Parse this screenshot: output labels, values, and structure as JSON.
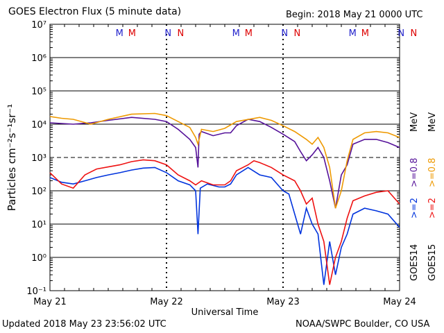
{
  "header": {
    "title": "GOES Electron Flux (5 minute data)",
    "begin": "Begin: 2018 May 21 0000 UTC"
  },
  "footer": {
    "updated": "Updated 2018 May 23 23:56:02 UTC",
    "credit": "NOAA/SWPC Boulder, CO USA"
  },
  "colors": {
    "goes14_2mev": "#0033dd",
    "goes15_2mev": "#ee1111",
    "goes14_08mev": "#551199",
    "goes15_08mev": "#ee9900",
    "marker_m": "#2222cc",
    "marker_n": "#2222cc",
    "marker_red": "#dd0000"
  },
  "chart_data": {
    "type": "line",
    "xlabel": "Universal Time",
    "ylabel": "Particles cm⁻²s⁻¹sr⁻¹",
    "x_ticks": [
      "May 21",
      "May 22",
      "May 23",
      "May 24"
    ],
    "y_scale": "log",
    "y_ticks": [
      "10⁻¹",
      "10⁰",
      "10¹",
      "10²",
      "10³",
      "10⁴",
      "10⁵",
      "10⁶",
      "10⁷"
    ],
    "xlim_days": [
      0,
      3
    ],
    "ylim": [
      0.1,
      10000000
    ],
    "threshold_line": 1000,
    "midnight_noon_markers": [
      {
        "day": 0,
        "labels": [
          "M",
          "M",
          "N",
          "N"
        ]
      },
      {
        "day": 1,
        "labels": [
          "M",
          "M",
          "N",
          "N"
        ]
      },
      {
        "day": 2,
        "labels": [
          "M",
          "M",
          "N",
          "N"
        ]
      }
    ],
    "legend": {
      "goes14_2": ">=2",
      "goes15_2": ">=2",
      "goes14_08": ">=0.8",
      "goes15_08": ">=0.8",
      "mev": "MeV",
      "goes14": "GOES14",
      "goes15": "GOES15"
    },
    "series": [
      {
        "name": "GOES14 >=0.8 MeV",
        "color": "#551199",
        "points": [
          [
            0.0,
            11000
          ],
          [
            0.1,
            10500
          ],
          [
            0.2,
            10000
          ],
          [
            0.35,
            11000
          ],
          [
            0.5,
            13000
          ],
          [
            0.7,
            16000
          ],
          [
            0.9,
            14000
          ],
          [
            1.0,
            12000
          ],
          [
            1.1,
            7000
          ],
          [
            1.2,
            3500
          ],
          [
            1.25,
            2000
          ],
          [
            1.27,
            500
          ],
          [
            1.28,
            5000
          ],
          [
            1.3,
            6000
          ],
          [
            1.4,
            4500
          ],
          [
            1.5,
            5500
          ],
          [
            1.55,
            5500
          ],
          [
            1.6,
            9000
          ],
          [
            1.7,
            14000
          ],
          [
            1.8,
            12000
          ],
          [
            1.9,
            8000
          ],
          [
            2.0,
            5000
          ],
          [
            2.1,
            3000
          ],
          [
            2.15,
            1500
          ],
          [
            2.2,
            800
          ],
          [
            2.25,
            1200
          ],
          [
            2.3,
            2000
          ],
          [
            2.35,
            1000
          ],
          [
            2.4,
            200
          ],
          [
            2.45,
            30
          ],
          [
            2.5,
            300
          ],
          [
            2.55,
            600
          ],
          [
            2.6,
            2500
          ],
          [
            2.7,
            3500
          ],
          [
            2.8,
            3500
          ],
          [
            2.9,
            2800
          ],
          [
            3.0,
            2000
          ]
        ]
      },
      {
        "name": "GOES15 >=0.8 MeV",
        "color": "#ee9900",
        "points": [
          [
            0.0,
            17000
          ],
          [
            0.1,
            15000
          ],
          [
            0.2,
            14000
          ],
          [
            0.35,
            10000
          ],
          [
            0.5,
            14000
          ],
          [
            0.7,
            20000
          ],
          [
            0.9,
            21000
          ],
          [
            1.0,
            18000
          ],
          [
            1.1,
            12000
          ],
          [
            1.2,
            8000
          ],
          [
            1.25,
            4000
          ],
          [
            1.27,
            2500
          ],
          [
            1.3,
            7000
          ],
          [
            1.4,
            6000
          ],
          [
            1.5,
            7500
          ],
          [
            1.6,
            12000
          ],
          [
            1.8,
            16000
          ],
          [
            1.9,
            13000
          ],
          [
            2.0,
            9000
          ],
          [
            2.1,
            6000
          ],
          [
            2.2,
            3500
          ],
          [
            2.25,
            2500
          ],
          [
            2.3,
            4000
          ],
          [
            2.35,
            2000
          ],
          [
            2.4,
            500
          ],
          [
            2.45,
            30
          ],
          [
            2.5,
            100
          ],
          [
            2.55,
            800
          ],
          [
            2.6,
            3500
          ],
          [
            2.7,
            5500
          ],
          [
            2.8,
            6000
          ],
          [
            2.9,
            5500
          ],
          [
            3.0,
            4000
          ]
        ]
      },
      {
        "name": "GOES14 >=2 MeV",
        "color": "#0033dd",
        "points": [
          [
            0.0,
            250
          ],
          [
            0.1,
            180
          ],
          [
            0.2,
            160
          ],
          [
            0.3,
            200
          ],
          [
            0.4,
            250
          ],
          [
            0.5,
            300
          ],
          [
            0.6,
            350
          ],
          [
            0.7,
            420
          ],
          [
            0.8,
            480
          ],
          [
            0.9,
            500
          ],
          [
            1.0,
            350
          ],
          [
            1.1,
            200
          ],
          [
            1.2,
            150
          ],
          [
            1.25,
            100
          ],
          [
            1.27,
            5
          ],
          [
            1.29,
            120
          ],
          [
            1.35,
            160
          ],
          [
            1.45,
            130
          ],
          [
            1.5,
            130
          ],
          [
            1.55,
            160
          ],
          [
            1.6,
            300
          ],
          [
            1.7,
            500
          ],
          [
            1.8,
            300
          ],
          [
            1.9,
            250
          ],
          [
            2.0,
            100
          ],
          [
            2.05,
            80
          ],
          [
            2.1,
            20
          ],
          [
            2.15,
            5
          ],
          [
            2.2,
            30
          ],
          [
            2.25,
            10
          ],
          [
            2.3,
            5
          ],
          [
            2.35,
            0.15
          ],
          [
            2.4,
            3
          ],
          [
            2.45,
            0.3
          ],
          [
            2.5,
            2
          ],
          [
            2.55,
            5
          ],
          [
            2.6,
            20
          ],
          [
            2.7,
            30
          ],
          [
            2.8,
            25
          ],
          [
            2.9,
            20
          ],
          [
            3.0,
            8
          ]
        ]
      },
      {
        "name": "GOES15 >=2 MeV",
        "color": "#ee1111",
        "points": [
          [
            0.0,
            350
          ],
          [
            0.1,
            160
          ],
          [
            0.2,
            120
          ],
          [
            0.3,
            300
          ],
          [
            0.4,
            450
          ],
          [
            0.5,
            520
          ],
          [
            0.6,
            600
          ],
          [
            0.7,
            750
          ],
          [
            0.8,
            850
          ],
          [
            0.9,
            800
          ],
          [
            1.0,
            600
          ],
          [
            1.1,
            300
          ],
          [
            1.2,
            200
          ],
          [
            1.25,
            150
          ],
          [
            1.3,
            200
          ],
          [
            1.4,
            150
          ],
          [
            1.5,
            150
          ],
          [
            1.55,
            200
          ],
          [
            1.6,
            400
          ],
          [
            1.7,
            600
          ],
          [
            1.75,
            800
          ],
          [
            1.8,
            700
          ],
          [
            1.9,
            500
          ],
          [
            2.0,
            300
          ],
          [
            2.1,
            200
          ],
          [
            2.15,
            100
          ],
          [
            2.2,
            40
          ],
          [
            2.25,
            60
          ],
          [
            2.3,
            10
          ],
          [
            2.35,
            3
          ],
          [
            2.4,
            0.15
          ],
          [
            2.45,
            1
          ],
          [
            2.5,
            3
          ],
          [
            2.55,
            15
          ],
          [
            2.6,
            50
          ],
          [
            2.7,
            70
          ],
          [
            2.8,
            90
          ],
          [
            2.9,
            100
          ],
          [
            3.0,
            40
          ]
        ]
      }
    ]
  }
}
